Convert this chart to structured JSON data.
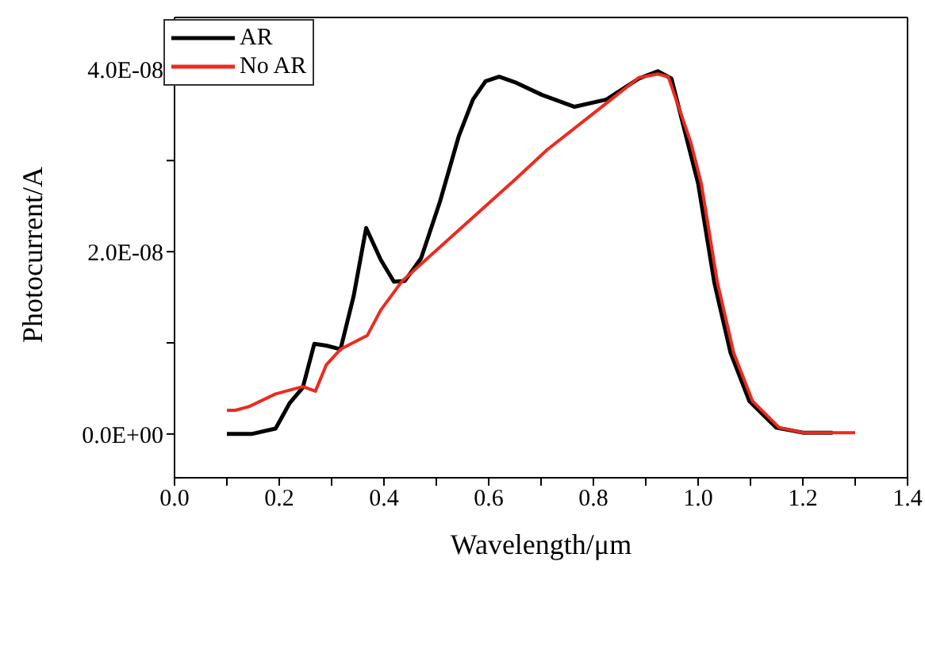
{
  "chart_data": {
    "type": "line",
    "xlabel": "Wavelength/μm",
    "ylabel": "Photocurrent/A",
    "xlim": [
      0,
      1.4
    ],
    "ylim": [
      -4.8e-09,
      4.57e-08
    ],
    "xticks": [
      {
        "value": 0,
        "label": "0.0"
      },
      {
        "value": 0.1,
        "label": null
      },
      {
        "value": 0.2,
        "label": "0.2"
      },
      {
        "value": 0.3,
        "label": null
      },
      {
        "value": 0.4,
        "label": "0.4"
      },
      {
        "value": 0.5,
        "label": null
      },
      {
        "value": 0.6,
        "label": "0.6"
      },
      {
        "value": 0.7,
        "label": null
      },
      {
        "value": 0.8,
        "label": "0.8"
      },
      {
        "value": 0.9,
        "label": null
      },
      {
        "value": 1.0,
        "label": "1.0"
      },
      {
        "value": 1.1,
        "label": null
      },
      {
        "value": 1.2,
        "label": "1.2"
      },
      {
        "value": 1.3,
        "label": null
      },
      {
        "value": 1.4,
        "label": "1.4"
      }
    ],
    "yticks": [
      {
        "value": 0,
        "label": "0.0E+00"
      },
      {
        "value": 1e-08,
        "label": null
      },
      {
        "value": 2e-08,
        "label": "2.0E-08"
      },
      {
        "value": 3e-08,
        "label": null
      },
      {
        "value": 4e-08,
        "label": "4.0E-08"
      }
    ],
    "grid": false,
    "legend": "top left",
    "marker": "none",
    "line_style": "solid",
    "series": [
      {
        "name": "AR",
        "color": "#000000",
        "x": [
          0.1,
          0.147,
          0.193,
          0.22,
          0.245,
          0.267,
          0.29,
          0.317,
          0.342,
          0.366,
          0.394,
          0.419,
          0.44,
          0.471,
          0.507,
          0.543,
          0.57,
          0.594,
          0.62,
          0.65,
          0.702,
          0.764,
          0.825,
          0.887,
          0.923,
          0.949,
          0.98,
          1.0,
          1.031,
          1.062,
          1.098,
          1.149,
          1.2,
          1.257
        ],
        "values": [
          0,
          0,
          6e-10,
          3.4e-09,
          5.1e-09,
          9.9e-09,
          9.7e-09,
          9.3e-09,
          1.51e-08,
          2.26e-08,
          1.91e-08,
          1.67e-08,
          1.68e-08,
          1.93e-08,
          2.55e-08,
          3.27e-08,
          3.67e-08,
          3.87e-08,
          3.92e-08,
          3.86e-08,
          3.72e-08,
          3.59e-08,
          3.67e-08,
          3.9e-08,
          3.98e-08,
          3.9e-08,
          3.2e-08,
          2.75e-08,
          1.66e-08,
          8.9e-09,
          3.6e-09,
          7e-10,
          1.5e-10,
          1.5e-10
        ]
      },
      {
        "name": "No AR",
        "color": "#ee2a1e",
        "x": [
          0.1,
          0.116,
          0.142,
          0.193,
          0.245,
          0.269,
          0.29,
          0.317,
          0.368,
          0.394,
          0.435,
          0.65,
          0.712,
          0.887,
          0.923,
          0.943,
          0.986,
          1.006,
          1.037,
          1.068,
          1.104,
          1.155,
          1.2,
          1.3
        ],
        "values": [
          2.6e-09,
          2.6e-09,
          3e-09,
          4.4e-09,
          5.2e-09,
          4.7e-09,
          7.6e-09,
          9.3e-09,
          1.08e-08,
          1.36e-08,
          1.68e-08,
          2.79e-08,
          3.12e-08,
          3.91e-08,
          3.95e-08,
          3.92e-08,
          3.2e-08,
          2.75e-08,
          1.66e-08,
          8.9e-09,
          3.6e-09,
          7e-10,
          1.5e-10,
          1.5e-10
        ]
      }
    ]
  }
}
